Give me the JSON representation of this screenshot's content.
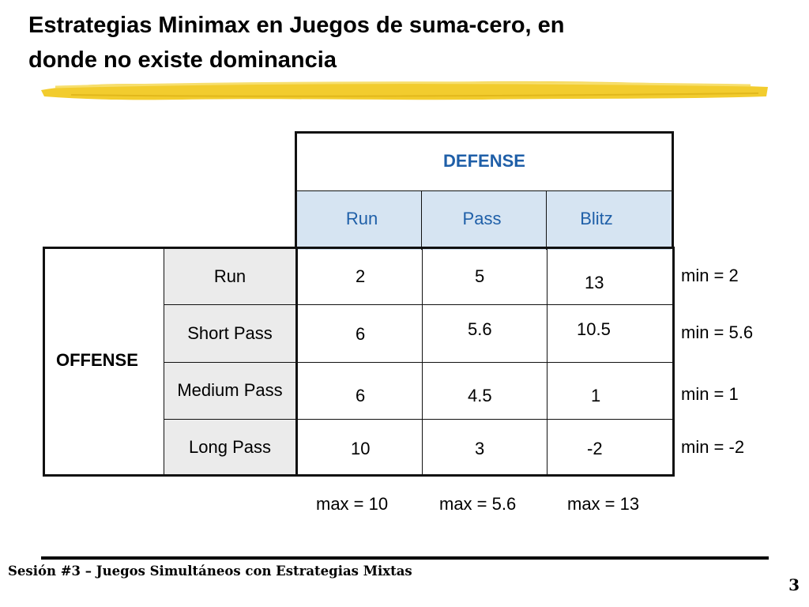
{
  "slide": {
    "title_line1": "Estrategias Minimax en Juegos de suma-cero, en",
    "title_line2": "donde no existe dominancia",
    "accent_color": "#f2cc2e"
  },
  "defense": {
    "label": "DEFENSE",
    "columns": [
      "Run",
      "Pass",
      "Blitz"
    ]
  },
  "offense": {
    "label": "OFFENSE",
    "rows": [
      "Run",
      "Short Pass",
      "Medium Pass",
      "Long Pass"
    ]
  },
  "payoffs": [
    [
      "2",
      "5",
      "13"
    ],
    [
      "6",
      "5.6",
      "10.5"
    ],
    [
      "6",
      "4.5",
      "1"
    ],
    [
      "10",
      "3",
      "-2"
    ]
  ],
  "row_mins": [
    "min = 2",
    "min = 5.6",
    "min = 1",
    "min = -2"
  ],
  "col_maxes": [
    "max = 10",
    "max = 5.6",
    "max = 13"
  ],
  "footer": {
    "text": "Sesión #3 – Juegos Simultáneos con Estrategias Mixtas",
    "page_number": "3"
  }
}
